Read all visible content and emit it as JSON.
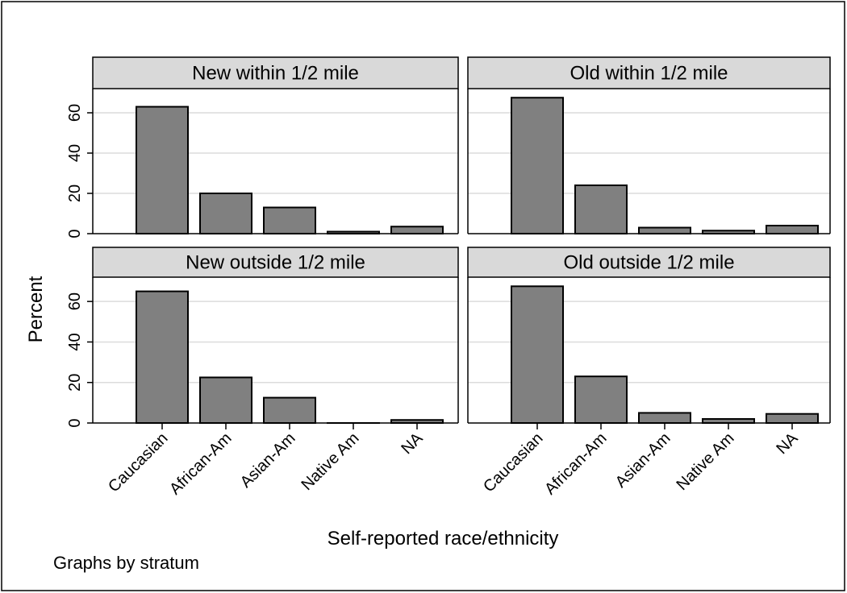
{
  "chart_data": {
    "type": "bar",
    "ylabel": "Percent",
    "xlabel": "Self-reported race/ethnicity",
    "note": "Graphs by stratum",
    "categories": [
      "Caucasian",
      "African-Am",
      "Asian-Am",
      "Native Am",
      "NA"
    ],
    "y_ticks": [
      0,
      20,
      40,
      60
    ],
    "ylim": [
      0,
      72
    ],
    "grid": true,
    "bar_color": "#808080",
    "panels": [
      {
        "title": "New within 1/2 mile",
        "values": [
          63,
          20,
          13,
          1,
          3.5
        ]
      },
      {
        "title": "Old within 1/2 mile",
        "values": [
          67.5,
          24,
          3,
          1.5,
          4
        ]
      },
      {
        "title": "New outside 1/2 mile",
        "values": [
          65,
          22.5,
          12.5,
          0,
          1.5
        ]
      },
      {
        "title": "Old outside 1/2 mile",
        "values": [
          67.5,
          23,
          5,
          2,
          4.5
        ]
      }
    ]
  }
}
